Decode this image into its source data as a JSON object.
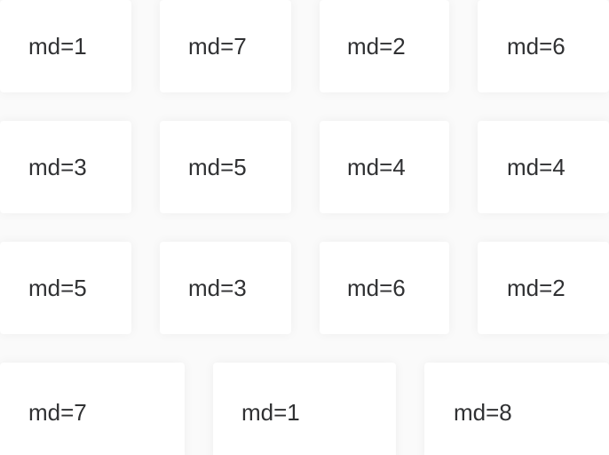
{
  "grid": {
    "rows": [
      {
        "cells": [
          {
            "label": "md=1"
          },
          {
            "label": "md=7"
          },
          {
            "label": "md=2"
          },
          {
            "label": "md=6"
          }
        ]
      },
      {
        "cells": [
          {
            "label": "md=3"
          },
          {
            "label": "md=5"
          },
          {
            "label": "md=4"
          },
          {
            "label": "md=4"
          }
        ]
      },
      {
        "cells": [
          {
            "label": "md=5"
          },
          {
            "label": "md=3"
          },
          {
            "label": "md=6"
          },
          {
            "label": "md=2"
          }
        ]
      },
      {
        "cells": [
          {
            "label": "md=7"
          },
          {
            "label": "md=1"
          },
          {
            "label": "md=8"
          }
        ]
      }
    ]
  },
  "colors": {
    "background": "#fafafa",
    "card": "#ffffff",
    "text": "#303133"
  }
}
